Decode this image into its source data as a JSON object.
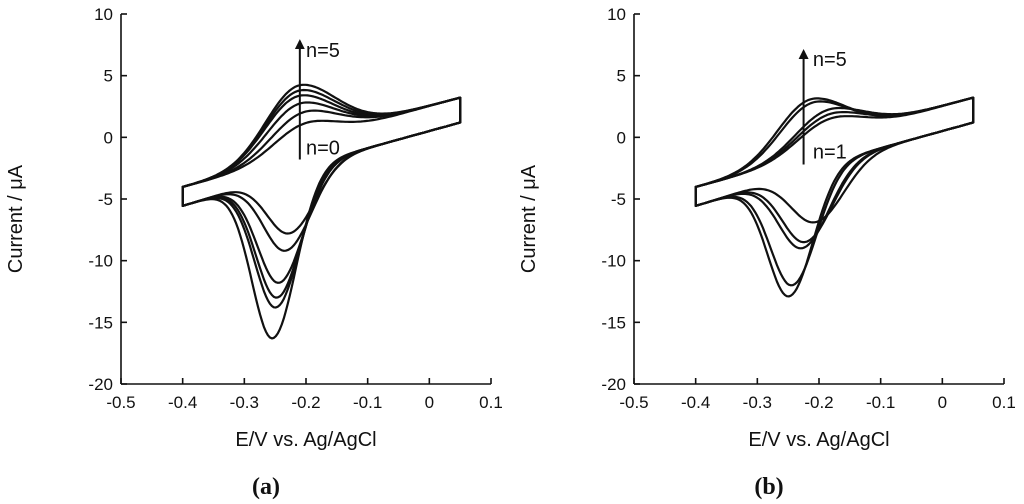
{
  "chart_data": [
    {
      "type": "line",
      "title": "",
      "panel_label": "a",
      "xlabel": "E/V vs. Ag/AgCl",
      "ylabel": "Current / μA",
      "xlim": [
        -0.5,
        0.1
      ],
      "ylim": [
        -20,
        10
      ],
      "xticks": [
        -0.5,
        -0.4,
        -0.3,
        -0.2,
        -0.1,
        0,
        0.1
      ],
      "xtick_labels": [
        "-0.5",
        "-0.4",
        "-0.3",
        "-0.2",
        "-0.1",
        "0",
        "0.1"
      ],
      "yticks": [
        -20,
        -15,
        -10,
        -5,
        0,
        5,
        10
      ],
      "ytick_labels": [
        "-20",
        "-15",
        "-10",
        "-5",
        "0",
        "5",
        "10"
      ],
      "grid": false,
      "arrow": {
        "x": -0.21,
        "y_start": -1.8,
        "y_end": 7.8
      },
      "annotations": [
        {
          "text": "n=5",
          "x": -0.2,
          "y": 6.5
        },
        {
          "text": "n=0",
          "x": -0.2,
          "y": -1.4
        }
      ],
      "series": [
        {
          "pa": 1.8,
          "ea": -0.18,
          "pc": -7.8,
          "ec": -0.23,
          "wc": 0.05
        },
        {
          "pa": 2.8,
          "ea": -0.19,
          "pc": -9.2,
          "ec": -0.235,
          "wc": 0.05
        },
        {
          "pa": 3.6,
          "ea": -0.2,
          "pc": -11.8,
          "ec": -0.245,
          "wc": 0.048
        },
        {
          "pa": 4.3,
          "ea": -0.205,
          "pc": -13.0,
          "ec": -0.248,
          "wc": 0.047
        },
        {
          "pa": 4.8,
          "ea": -0.205,
          "pc": -13.8,
          "ec": -0.25,
          "wc": 0.047
        },
        {
          "pa": 5.3,
          "ea": -0.205,
          "pc": -16.3,
          "ec": -0.255,
          "wc": 0.046
        }
      ]
    },
    {
      "type": "line",
      "title": "",
      "panel_label": "b",
      "xlabel": "E/V vs. Ag/AgCl",
      "ylabel": "Current / μA",
      "xlim": [
        -0.5,
        0.1
      ],
      "ylim": [
        -20,
        10
      ],
      "xticks": [
        -0.5,
        -0.4,
        -0.3,
        -0.2,
        -0.1,
        0,
        0.1
      ],
      "xtick_labels": [
        "-0.5",
        "-0.4",
        "-0.3",
        "-0.2",
        "-0.1",
        "0",
        "0.1"
      ],
      "yticks": [
        -20,
        -15,
        -10,
        -5,
        0,
        5,
        10
      ],
      "ytick_labels": [
        "-20",
        "-15",
        "-10",
        "-5",
        "0",
        "5",
        "10"
      ],
      "grid": false,
      "arrow": {
        "x": -0.225,
        "y_start": -2.2,
        "y_end": 7.0
      },
      "annotations": [
        {
          "text": "n=5",
          "x": -0.21,
          "y": 5.8
        },
        {
          "text": "n=1",
          "x": -0.21,
          "y": -1.7
        }
      ],
      "series": [
        {
          "pa": 2.2,
          "ea": -0.16,
          "pc": -6.9,
          "ec": -0.21,
          "wc": 0.055
        },
        {
          "pa": 2.6,
          "ea": -0.165,
          "pc": -8.5,
          "ec": -0.225,
          "wc": 0.052
        },
        {
          "pa": 3.0,
          "ea": -0.17,
          "pc": -9.0,
          "ec": -0.23,
          "wc": 0.052
        },
        {
          "pa": 3.7,
          "ea": -0.2,
          "pc": -12.0,
          "ec": -0.245,
          "wc": 0.048
        },
        {
          "pa": 4.0,
          "ea": -0.205,
          "pc": -12.9,
          "ec": -0.25,
          "wc": 0.047
        }
      ]
    }
  ]
}
